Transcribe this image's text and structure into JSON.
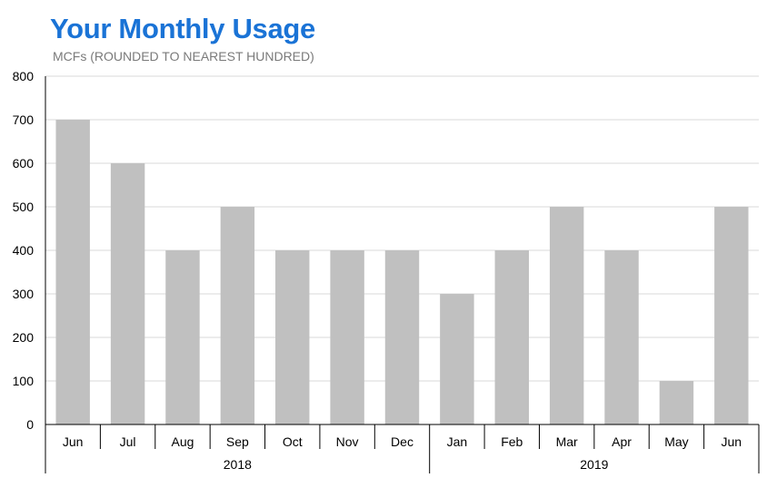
{
  "header": {
    "title": "Your Monthly Usage",
    "subtitle": "MCFs (ROUNDED TO NEAREST HUNDRED)"
  },
  "colors": {
    "title": "#1a73d6",
    "bar": "#c0c0c0",
    "grid": "#d9d9d9",
    "axis": "#000000"
  },
  "chart_data": {
    "type": "bar",
    "title": "Your Monthly Usage",
    "ylabel": "MCFs (ROUNDED TO NEAREST HUNDRED)",
    "xlabel": "",
    "ylim": [
      0,
      800
    ],
    "yticks": [
      0,
      100,
      200,
      300,
      400,
      500,
      600,
      700,
      800
    ],
    "grid": true,
    "categories": [
      "Jun",
      "Jul",
      "Aug",
      "Sep",
      "Oct",
      "Nov",
      "Dec",
      "Jan",
      "Feb",
      "Mar",
      "Apr",
      "May",
      "Jun"
    ],
    "values": [
      700,
      600,
      400,
      500,
      400,
      400,
      400,
      300,
      400,
      500,
      400,
      100,
      500
    ],
    "groups": [
      {
        "label": "2018",
        "count": 7
      },
      {
        "label": "2019",
        "count": 6
      }
    ]
  }
}
